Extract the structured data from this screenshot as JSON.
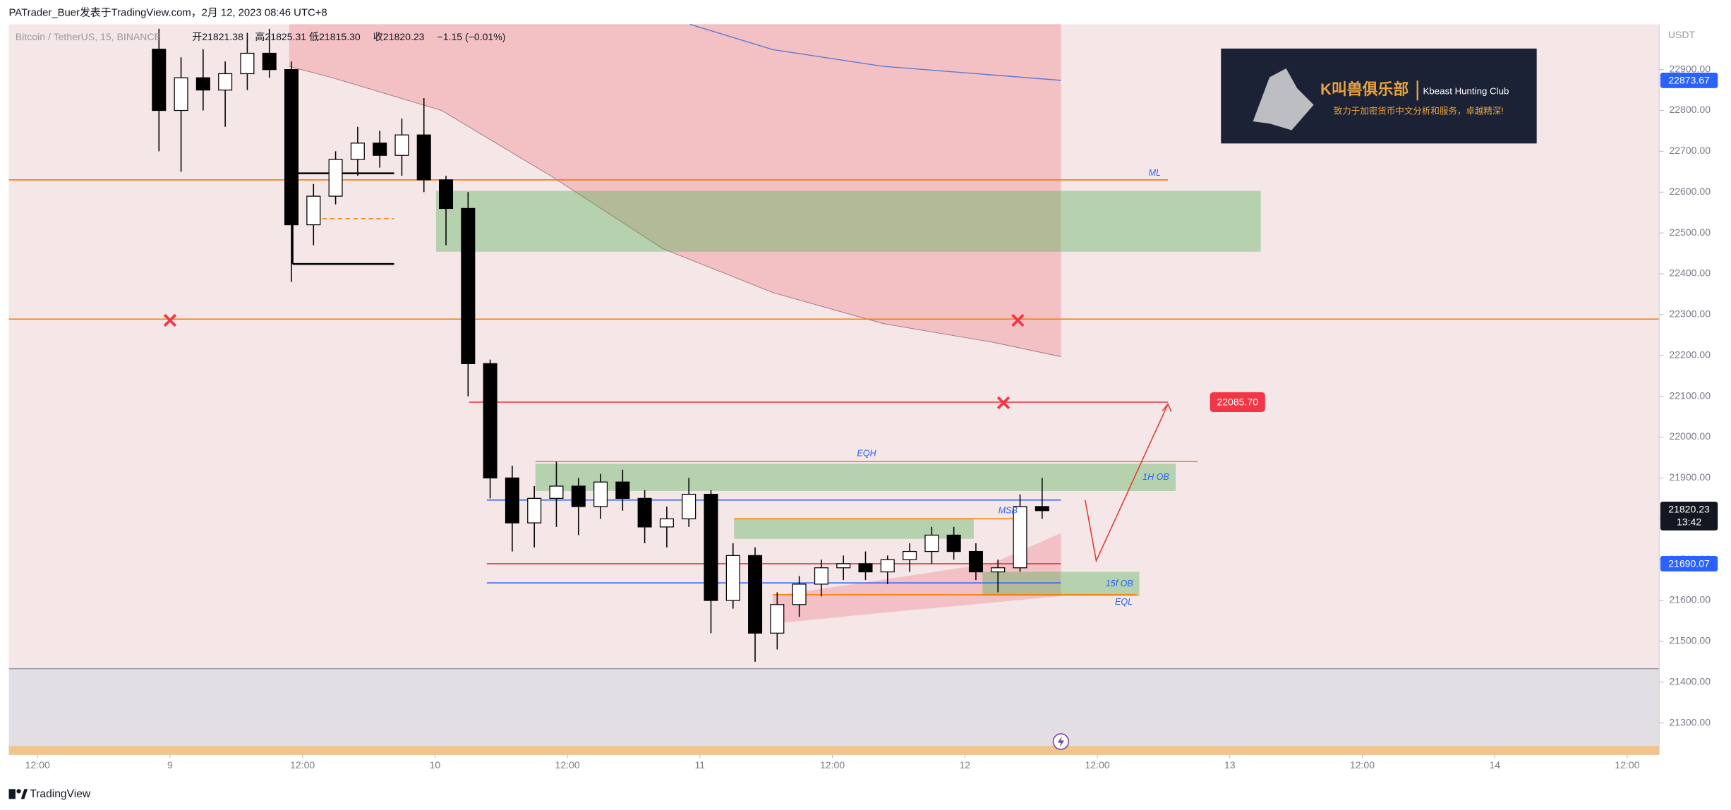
{
  "chart_data": {
    "type": "candlestick",
    "title": "PATrader_Buer发表于TradingView.com，2月 12, 2023 08:46 UTC+8",
    "symbol": "Bitcoin / TetherUS, 15, BINANCE",
    "ohlc_legend": [
      "开21821.38",
      "高21825.31",
      "低21815.30",
      "收21820.23",
      "−1.15 (−0.01%)"
    ],
    "y_unit": "USDT",
    "xlim": [
      -14.6,
      134.9
    ],
    "ylim": [
      21222,
      23011
    ],
    "xticks": [
      {
        "value": -12,
        "label": "12:00"
      },
      {
        "value": 0,
        "label": "9"
      },
      {
        "value": 12,
        "label": "12:00"
      },
      {
        "value": 24,
        "label": "10"
      },
      {
        "value": 36,
        "label": "12:00"
      },
      {
        "value": 48,
        "label": "11"
      },
      {
        "value": 60,
        "label": "12:00"
      },
      {
        "value": 72,
        "label": "12"
      },
      {
        "value": 84,
        "label": "12:00"
      },
      {
        "value": 96,
        "label": "13"
      },
      {
        "value": 108,
        "label": "12:00"
      },
      {
        "value": 120,
        "label": "14"
      },
      {
        "value": 132,
        "label": "12:00"
      }
    ],
    "yticks": [
      {
        "value": 21300,
        "label": "21300.00"
      },
      {
        "value": 21400,
        "label": "21400.00"
      },
      {
        "value": 21500,
        "label": "21500.00"
      },
      {
        "value": 21600,
        "label": "21600.00"
      },
      {
        "value": 21700,
        "label": "21700.00"
      },
      {
        "value": 21800,
        "label": "21800.00"
      },
      {
        "value": 21900,
        "label": "21900.00"
      },
      {
        "value": 22000,
        "label": "22000.00"
      },
      {
        "value": 22100,
        "label": "22100.00"
      },
      {
        "value": 22200,
        "label": "22200.00"
      },
      {
        "value": 22300,
        "label": "22300.00"
      },
      {
        "value": 22400,
        "label": "22400.00"
      },
      {
        "value": 22500,
        "label": "22500.00"
      },
      {
        "value": 22600,
        "label": "22600.00"
      },
      {
        "value": 22700,
        "label": "22700.00"
      },
      {
        "value": 22800,
        "label": "22800.00"
      },
      {
        "value": 22900,
        "label": "22900.00"
      }
    ],
    "up_color": "#ffffff",
    "down_color": "#000000",
    "x": [
      -1,
      1,
      3,
      5,
      7,
      9,
      11,
      13,
      15,
      17,
      19,
      21,
      23,
      25,
      27,
      29,
      31,
      33,
      35,
      37,
      39,
      41,
      43,
      45,
      47,
      49,
      51,
      53,
      55,
      57,
      59,
      61,
      63,
      65,
      67,
      69,
      71,
      73,
      75,
      77,
      79
    ],
    "open": [
      22950,
      22800,
      22880,
      22850,
      22890,
      22940,
      22900,
      22520,
      22590,
      22680,
      22720,
      22690,
      22740,
      22630,
      22560,
      22180,
      21900,
      21790,
      21850,
      21880,
      21830,
      21890,
      21850,
      21780,
      21800,
      21860,
      21600,
      21710,
      21520,
      21590,
      21640,
      21680,
      21690,
      21670,
      21700,
      21720,
      21760,
      21720,
      21670,
      21680,
      21830
    ],
    "high": [
      23000,
      22930,
      22950,
      22920,
      22990,
      23000,
      22920,
      22620,
      22700,
      22760,
      22750,
      22780,
      22830,
      22640,
      22600,
      22190,
      21930,
      21880,
      21940,
      21900,
      21910,
      21920,
      21870,
      21830,
      21900,
      21870,
      21740,
      21730,
      21620,
      21660,
      21700,
      21710,
      21720,
      21710,
      21740,
      21780,
      21780,
      21740,
      21700,
      21860,
      21900
    ],
    "low": [
      22700,
      22650,
      22800,
      22760,
      22850,
      22880,
      22380,
      22470,
      22570,
      22640,
      22660,
      22640,
      22600,
      22470,
      22100,
      21850,
      21720,
      21730,
      21780,
      21760,
      21800,
      21820,
      21740,
      21730,
      21780,
      21520,
      21580,
      21450,
      21480,
      21560,
      21610,
      21650,
      21650,
      21640,
      21670,
      21690,
      21700,
      21650,
      21620,
      21670,
      21800
    ],
    "close": [
      22800,
      22880,
      22850,
      22890,
      22940,
      22900,
      22520,
      22590,
      22680,
      22720,
      22690,
      22740,
      22630,
      22560,
      22180,
      21900,
      21790,
      21850,
      21880,
      21830,
      21890,
      21850,
      21780,
      21800,
      21860,
      21600,
      21710,
      21520,
      21590,
      21640,
      21680,
      21690,
      21670,
      21700,
      21720,
      21760,
      21720,
      21670,
      21680,
      21830,
      21820
    ],
    "bands": [
      {
        "x": [
          10.8,
          14.6,
          24.6,
          34.6,
          44.6,
          54.6,
          64.6,
          74.6,
          80.7
        ],
        "lower": [
          22908,
          22881,
          22800,
          22638,
          22462,
          22354,
          22278,
          22232,
          22197
        ],
        "color": "#f2b8bd"
      },
      {
        "x": [
          54.6,
          64.6,
          74.6,
          80.7
        ],
        "upper": [
          21611,
          21651,
          21692,
          21765
        ],
        "lower": [
          21543,
          21570,
          21595,
          21611
        ],
        "color": "#f2b8bd"
      }
    ],
    "vwap": {
      "x": [
        47.1,
        54.6,
        64.6,
        80.7
      ],
      "values": [
        23011,
        22949,
        22908,
        22873.67
      ],
      "color": "#5b7bd5"
    },
    "zones": [
      {
        "x": [
          24.1,
          98.8
        ],
        "y": [
          22454,
          22603
        ],
        "color": "#4caf50"
      },
      {
        "x": [
          33.1,
          91.1
        ],
        "y": [
          21868,
          21935
        ],
        "color": "#4caf50",
        "label": "1H OB"
      },
      {
        "x": [
          51.1,
          72.8
        ],
        "y": [
          21751,
          21800
        ],
        "color": "#4caf50"
      },
      {
        "x": [
          73.6,
          87.8
        ],
        "y": [
          21611,
          21670
        ],
        "color": "#4caf50",
        "label": "15f OB"
      }
    ],
    "lines": [
      {
        "price": 22630,
        "x": [
          -14.6,
          90.4
        ],
        "color": "#f57c00",
        "label": "ML"
      },
      {
        "price": 22289,
        "x": [
          -14.6,
          134.9
        ],
        "color": "#f57c00"
      },
      {
        "price": 22085.7,
        "x": [
          27.1,
          90.4
        ],
        "color": "#f23645",
        "tag": "22085.70"
      },
      {
        "price": 21940,
        "x": [
          33.1,
          93.1
        ],
        "color": "#f57c00",
        "label": "EQH"
      },
      {
        "price": 21846,
        "x": [
          28.7,
          80.7
        ],
        "color": "#2962ff"
      },
      {
        "price": 21800,
        "x": [
          51.1,
          77.1
        ],
        "color": "#f57c00",
        "label": "MSB"
      },
      {
        "price": 21690,
        "x": [
          28.7,
          80.7
        ],
        "color": "#e53935"
      },
      {
        "price": 21643,
        "x": [
          28.7,
          80.7
        ],
        "color": "#2962ff"
      },
      {
        "price": 21614,
        "x": [
          54.6,
          87.6
        ],
        "color": "#f57c00",
        "label": "EQL"
      },
      {
        "price": 22646,
        "x": [
          11.1,
          20.3
        ],
        "color": "#000000"
      },
      {
        "price": 22424,
        "x": [
          11.1,
          20.3
        ],
        "color": "#000000"
      },
      {
        "price": 22535,
        "x": [
          12.4,
          20.3
        ],
        "color": "#f57c00",
        "dash": true
      }
    ],
    "markers": [
      {
        "x": 0,
        "price": 22286
      },
      {
        "x": 76.8,
        "price": 22286
      },
      {
        "x": 75.5,
        "price": 22084
      }
    ],
    "projection": {
      "x": [
        82.9,
        83.9,
        90.4
      ],
      "values": [
        21846,
        21697,
        22081
      ],
      "color": "#e53935"
    },
    "price_tags": [
      {
        "price": 22873.67,
        "color": "#2962ff"
      },
      {
        "price": 21820.23,
        "color": "#131722",
        "sublabel": "13:42"
      },
      {
        "price": 21690.07,
        "color": "#2962ff"
      }
    ]
  },
  "watermark": {
    "title": "K叫兽俱乐部",
    "subtitle": "Kbeast Hunting Club",
    "tagline": "致力于加密货币中文分析和服务，卓越精深!"
  },
  "footer": "TradingView"
}
